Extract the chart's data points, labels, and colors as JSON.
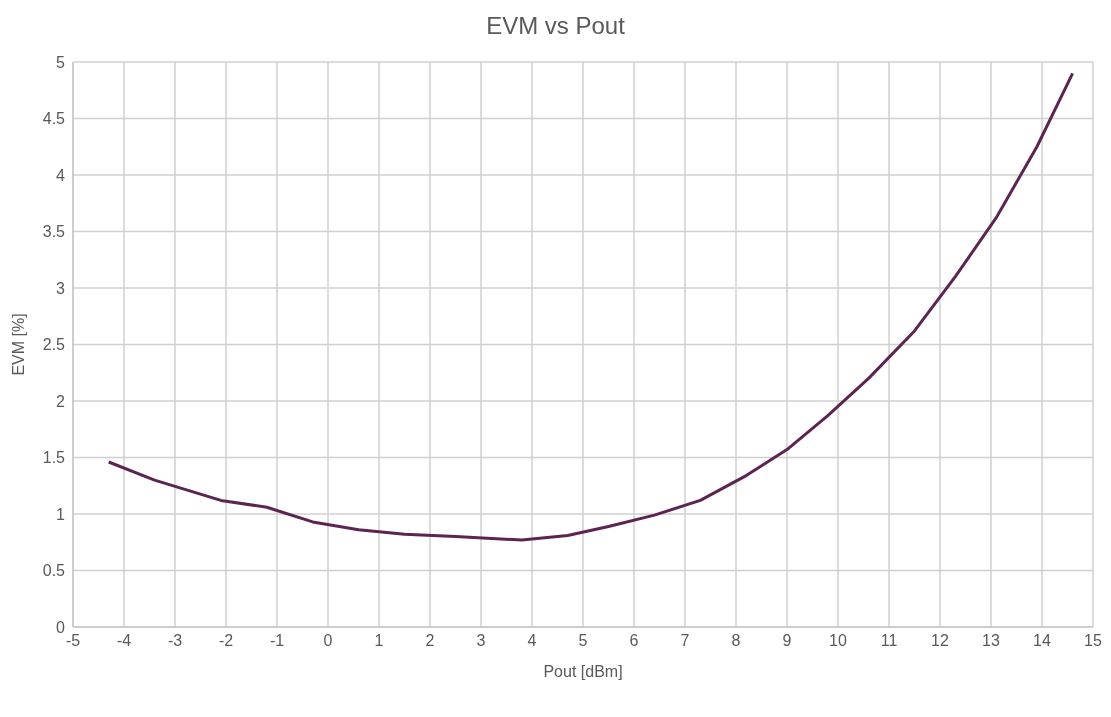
{
  "chart_data": {
    "type": "line",
    "title": "EVM vs Pout",
    "xlabel": "Pout [dBm]",
    "ylabel": "EVM [%]",
    "x": [
      -4.3,
      -3.4,
      -2.1,
      -1.2,
      -0.3,
      0.6,
      1.5,
      2.5,
      3.8,
      4.7,
      5.5,
      6.4,
      7.3,
      8.2,
      9.0,
      9.8,
      10.6,
      11.5,
      12.3,
      13.1,
      13.9,
      14.6
    ],
    "series": [
      {
        "color": "#5c2451",
        "values": [
          1.46,
          1.3,
          1.12,
          1.06,
          0.93,
          0.86,
          0.82,
          0.8,
          0.77,
          0.81,
          0.89,
          0.99,
          1.12,
          1.34,
          1.57,
          1.87,
          2.2,
          2.62,
          3.1,
          3.62,
          4.25,
          4.9
        ]
      }
    ],
    "xlim": [
      -5,
      15
    ],
    "xticks": [
      -5,
      -4,
      -3,
      -2,
      -1,
      0,
      1,
      2,
      3,
      4,
      5,
      6,
      7,
      8,
      9,
      10,
      11,
      12,
      13,
      14,
      15
    ],
    "ylim": [
      0,
      5
    ],
    "yticks": [
      0,
      0.5,
      1,
      1.5,
      2,
      2.5,
      3,
      3.5,
      4,
      4.5,
      5
    ],
    "grid": true,
    "legend": false,
    "marker": "none",
    "line_style": "solid"
  }
}
